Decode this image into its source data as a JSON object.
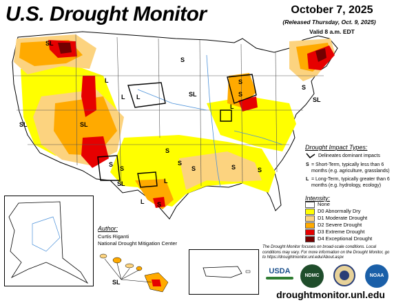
{
  "header": {
    "title": "U.S. Drought Monitor",
    "date": "October 7, 2025",
    "released": "(Released Thursday, Oct. 9, 2025)",
    "valid": "Valid 8 a.m. EDT"
  },
  "impact_legend": {
    "title": "Drought Impact Types:",
    "delineates": "Delineates dominant impacts",
    "s_code": "S",
    "s_text": "= Short-Term, typically less than 6 months (e.g. agriculture, grasslands)",
    "l_code": "L",
    "l_text": "= Long-Term, typically greater than 6 months (e.g. hydrology, ecology)"
  },
  "intensity_legend": {
    "title": "Intensity:",
    "items": [
      {
        "label": "None",
        "color": "#ffffff"
      },
      {
        "label": "D0 Abnormally Dry",
        "color": "#ffff00"
      },
      {
        "label": "D1 Moderate Drought",
        "color": "#fcd37f"
      },
      {
        "label": "D2 Severe Drought",
        "color": "#ffaa00"
      },
      {
        "label": "D3 Extreme Drought",
        "color": "#e60000"
      },
      {
        "label": "D4 Exceptional Drought",
        "color": "#730000"
      }
    ]
  },
  "author": {
    "title": "Author:",
    "name": "Curtis Riganti",
    "org": "National Drought Mitigation Center"
  },
  "note": "The Drought Monitor focuses on broad-scale conditions. Local conditions may vary. For more information on the Drought Monitor, go to https://droughtmonitor.unl.edu/About.aspx",
  "logos": {
    "usda": "USDA",
    "ndmc": "NDMC",
    "noaa": "NOAA"
  },
  "site": "droughtmonitor.unl.edu",
  "map_labels": [
    "SL",
    "S",
    "L",
    "SL",
    "SL",
    "S",
    "S",
    "L",
    "L",
    "L",
    "S",
    "SL",
    "SL",
    "S",
    "S",
    "SL",
    "S",
    "L",
    "S",
    "S",
    "S",
    "S",
    "S",
    "L",
    "SL"
  ]
}
